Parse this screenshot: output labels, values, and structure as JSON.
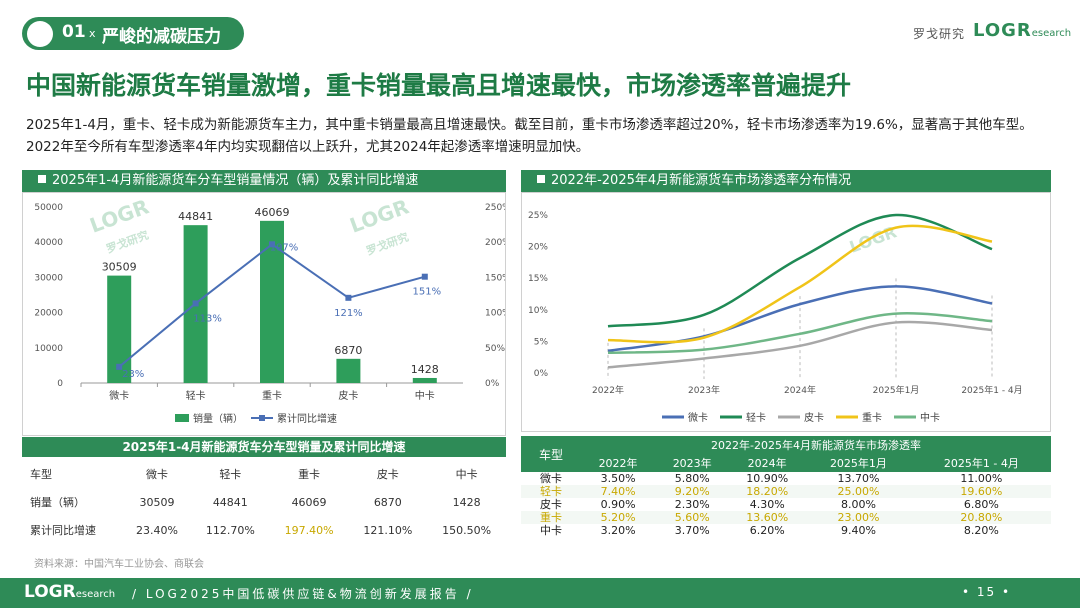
{
  "header": {
    "section_num": "01",
    "section_x": "x",
    "section_title": "严峻的减碳压力",
    "brand_cn": "罗戈研究",
    "brand_logo": "LOGR",
    "brand_logo_small": "esearch"
  },
  "title": "中国新能源货车销量激增，重卡销量最高且增速最快，市场渗透率普遍提升",
  "subtitle": "2025年1-4月，重卡、轻卡成为新能源货车主力，其中重卡销量最高且增速最快。截至目前，重卡市场渗透率超过20%，轻卡市场渗透率为19.6%，显著高于其他车型。2022年至今所有车型渗透率4年内均实现翻倍以上跃升，尤其2024年起渗透率增速明显加快。",
  "watermark_text": "LOGR",
  "watermark_cn": "罗戈研究",
  "left_panel": {
    "header": "2025年1-4月新能源货车分车型销量情况（辆）及累计同比增速",
    "table_title": "2025年1-4月新能源货车分车型销量及累计同比增速",
    "table_header": [
      "车型",
      "微卡",
      "轻卡",
      "重卡",
      "皮卡",
      "中卡"
    ],
    "rows": [
      {
        "label": "销量（辆）",
        "values": [
          "30509",
          "44841",
          "46069",
          "6870",
          "1428"
        ]
      },
      {
        "label": "累计同比增速",
        "values": [
          "23.40%",
          "112.70%",
          "197.40%",
          "121.10%",
          "150.50%"
        ]
      }
    ]
  },
  "right_panel": {
    "header": "2022年-2025年4月新能源货车市场渗透率分布情况",
    "table_title": "2022年-2025年4月新能源货车市场渗透率",
    "table_corner": "车型",
    "table_cols": [
      "2022年",
      "2023年",
      "2024年",
      "2025年1月",
      "2025年1 - 4月"
    ],
    "table_rows": [
      {
        "name": "微卡",
        "values": [
          "3.50%",
          "5.80%",
          "10.90%",
          "13.70%",
          "11.00%"
        ]
      },
      {
        "name": "轻卡",
        "values": [
          "7.40%",
          "9.20%",
          "18.20%",
          "25.00%",
          "19.60%"
        ]
      },
      {
        "name": "皮卡",
        "values": [
          "0.90%",
          "2.30%",
          "4.30%",
          "8.00%",
          "6.80%"
        ]
      },
      {
        "name": "重卡",
        "values": [
          "5.20%",
          "5.60%",
          "13.60%",
          "23.00%",
          "20.80%"
        ]
      },
      {
        "name": "中卡",
        "values": [
          "3.20%",
          "3.70%",
          "6.20%",
          "9.40%",
          "8.20%"
        ]
      }
    ]
  },
  "source": "资料来源：中国汽车工业协会、商联会",
  "footer": {
    "logo": "LOGR",
    "logo_small": "esearch",
    "text": "/  LOG2025中国低碳供应链&物流创新发展报告  /",
    "page": "•  15  •"
  },
  "chart_data": [
    {
      "type": "bar",
      "categories": [
        "微卡",
        "轻卡",
        "重卡",
        "皮卡",
        "中卡"
      ],
      "series": [
        {
          "name": "销量（辆）",
          "values": [
            30509,
            44841,
            46069,
            6870,
            1428
          ],
          "color": "#2e9e5b",
          "axis": "left"
        },
        {
          "name": "累计同比增速",
          "type": "line",
          "values": [
            23,
            113,
            197,
            121,
            151
          ],
          "labels": [
            "23%",
            "113%",
            "197%",
            "121%",
            "151%"
          ],
          "color": "#4a6fb5",
          "axis": "right"
        }
      ],
      "ylim": [
        0,
        50000
      ],
      "y_ticks": [
        "0",
        "10000",
        "20000",
        "30000",
        "40000",
        "50000"
      ],
      "y2lim": [
        0,
        250
      ],
      "y2_ticks": [
        "0%",
        "50%",
        "100%",
        "150%",
        "200%",
        "250%"
      ],
      "legend": [
        "销量（辆）",
        "累计同比增速"
      ]
    },
    {
      "type": "line",
      "x": [
        "2022年",
        "2023年",
        "2024年",
        "2025年1月",
        "2025年1 - 4月"
      ],
      "series": [
        {
          "name": "微卡",
          "values": [
            3.5,
            5.8,
            10.9,
            13.7,
            11.0
          ],
          "color": "#4a6fb5"
        },
        {
          "name": "轻卡",
          "values": [
            7.4,
            9.2,
            18.2,
            25.0,
            19.6
          ],
          "color": "#1f8a55"
        },
        {
          "name": "皮卡",
          "values": [
            0.9,
            2.3,
            4.3,
            8.0,
            6.8
          ],
          "color": "#a8a8a8"
        },
        {
          "name": "重卡",
          "values": [
            5.2,
            5.6,
            13.6,
            23.0,
            20.8
          ],
          "color": "#f0c419"
        },
        {
          "name": "中卡",
          "values": [
            3.2,
            3.7,
            6.2,
            9.4,
            8.2
          ],
          "color": "#6fb787"
        }
      ],
      "ylim": [
        0,
        25
      ],
      "y_ticks": [
        "0%",
        "5%",
        "10%",
        "15%",
        "20%",
        "25%"
      ]
    }
  ]
}
